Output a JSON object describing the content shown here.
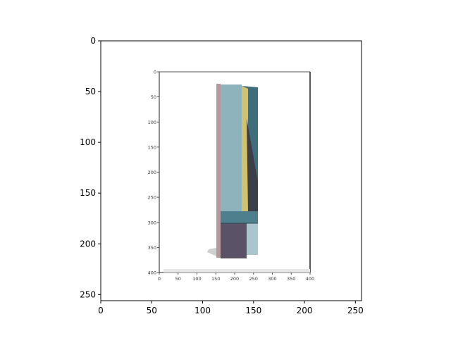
{
  "chart_data": {
    "type": "image",
    "title": "",
    "xlabel": "",
    "ylabel": "",
    "xlim": [
      0,
      256
    ],
    "ylim": [
      256,
      0
    ],
    "xticks": [
      "0",
      "50",
      "100",
      "150",
      "200",
      "250"
    ],
    "yticks": [
      "0",
      "50",
      "100",
      "150",
      "200",
      "250"
    ],
    "grid": false,
    "embedded_image": {
      "description_free": true,
      "xticks": [
        "0",
        "50",
        "100",
        "150",
        "200",
        "250",
        "300",
        "350",
        "400"
      ],
      "yticks": [
        "0",
        "50",
        "100",
        "150",
        "200",
        "250",
        "300",
        "350",
        "400"
      ],
      "colors": {
        "light_teal": "#8fb3bd",
        "dark_teal": "#3e6e7c",
        "mustard": "#d3c26a",
        "charcoal": "#3b3f4a",
        "purple_gray": "#5a5266",
        "pale_blue": "#a9c6cc",
        "pole": "#b49a9c"
      }
    }
  }
}
